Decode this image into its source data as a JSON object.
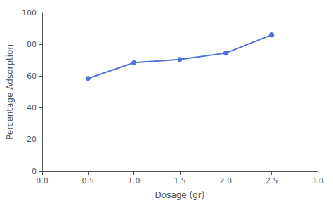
{
  "chart_data": {
    "type": "line",
    "x": [
      0.5,
      1.0,
      1.5,
      2.0,
      2.5
    ],
    "values": [
      58.5,
      68.5,
      70.5,
      74.5,
      86.0
    ],
    "xlabel": "Dosage (gr)",
    "ylabel": "Percentage Adsorption",
    "xlim": [
      0,
      3
    ],
    "xticks": [
      {
        "value": 0,
        "label": "0.0"
      },
      0.5,
      {
        "value": 1,
        "label": "1.0"
      },
      1.5,
      {
        "value": 2,
        "label": "2.0"
      },
      2.5,
      {
        "value": 3,
        "label": "3.0"
      }
    ],
    "ylim": [
      0,
      100
    ],
    "yticks": [
      0,
      20,
      40,
      60,
      80,
      100
    ],
    "marker": "circle",
    "grid": false
  }
}
